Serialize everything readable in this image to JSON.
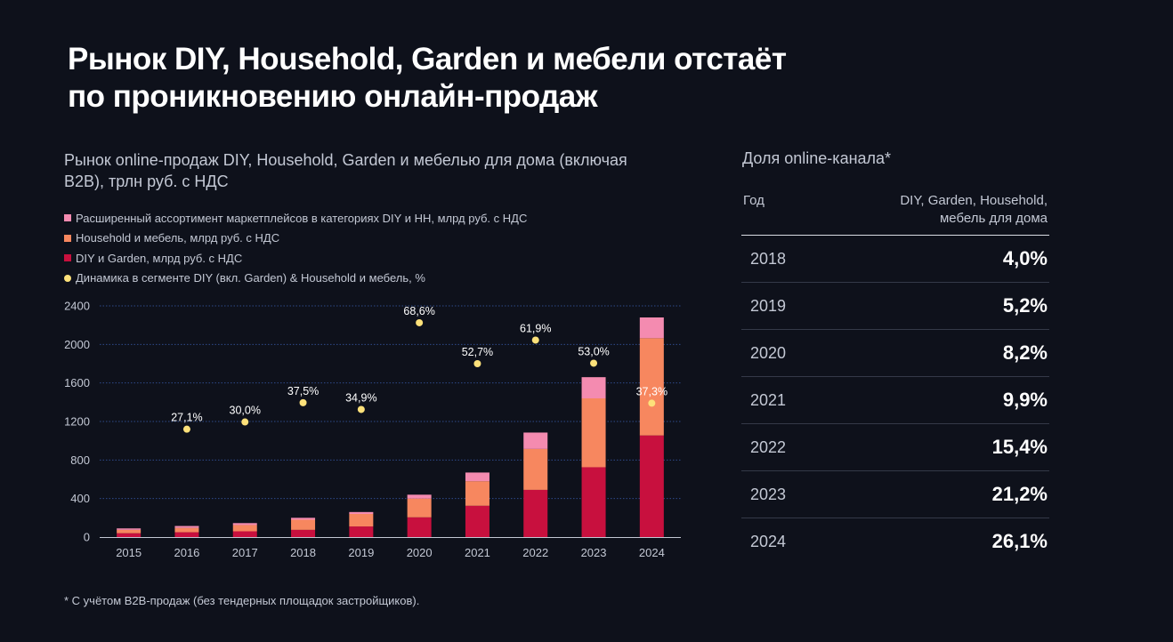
{
  "title": {
    "line1": "Рынок DIY, Household, Garden и мебели отстаёт",
    "line2": "по проникновению онлайн-продаж"
  },
  "chart_data": {
    "type": "bar",
    "stacked": true,
    "title": "Рынок online-продаж DIY, Household, Garden и мебелью для дома (включая B2B), трлн руб. с НДС",
    "categories": [
      "2015",
      "2016",
      "2017",
      "2018",
      "2019",
      "2020",
      "2021",
      "2022",
      "2023",
      "2024"
    ],
    "series": [
      {
        "name": "DIY и Garden, млрд руб. с НДС",
        "color": "#c8103e",
        "values": [
          40,
          50,
          60,
          75,
          110,
          205,
          325,
          490,
          725,
          1055
        ]
      },
      {
        "name": "Household  и мебель, млрд руб. с НДС",
        "color": "#f7875f",
        "values": [
          35,
          45,
          65,
          105,
          130,
          195,
          255,
          425,
          715,
          1010
        ]
      },
      {
        "name": "Расширенный ассортимент маркетплейсов в категориях DIY и HH, млрд руб. с НДС",
        "color": "#f48bb0",
        "values": [
          15,
          20,
          20,
          20,
          20,
          40,
          90,
          170,
          220,
          215
        ]
      }
    ],
    "growth_series": {
      "name": "Динамика в сегменте DIY (вкл. Garden) & Household  и мебель, %",
      "color": "#fde17a",
      "points": [
        {
          "year": "2016",
          "y": 1120,
          "label": "27,1%"
        },
        {
          "year": "2017",
          "y": 1195,
          "label": "30,0%"
        },
        {
          "year": "2018",
          "y": 1395,
          "label": "37,5%"
        },
        {
          "year": "2019",
          "y": 1325,
          "label": "34,9%"
        },
        {
          "year": "2020",
          "y": 2225,
          "label": "68,6%"
        },
        {
          "year": "2021",
          "y": 1800,
          "label": "52,7%"
        },
        {
          "year": "2022",
          "y": 2045,
          "label": "61,9%"
        },
        {
          "year": "2023",
          "y": 1805,
          "label": "53,0%"
        },
        {
          "year": "2024",
          "y": 1390,
          "label": "37,3%"
        }
      ]
    },
    "legend_order": [
      {
        "name": "Расширенный ассортимент маркетплейсов в категориях DIY и HH, млрд руб. с НДС",
        "color": "#f48bb0",
        "marker": "square"
      },
      {
        "name": "Household  и мебель, млрд руб. с НДС",
        "color": "#f7875f",
        "marker": "square"
      },
      {
        "name": "DIY и Garden, млрд руб. с НДС",
        "color": "#c8103e",
        "marker": "square"
      },
      {
        "name": "Динамика в сегменте DIY (вкл. Garden) & Household  и мебель, %",
        "color": "#fde17a",
        "marker": "dot"
      }
    ],
    "yticks": [
      0,
      400,
      800,
      1200,
      1600,
      2000,
      2400
    ],
    "ylim": [
      0,
      2400
    ],
    "grid": true
  },
  "share": {
    "title": "Доля online-канала*",
    "col_year": "Год",
    "col_segment_line1": "DIY, Garden, Household,",
    "col_segment_line2": "мебель для дома",
    "rows": [
      {
        "year": "2018",
        "value": "4,0%"
      },
      {
        "year": "2019",
        "value": "5,2%"
      },
      {
        "year": "2020",
        "value": "8,2%"
      },
      {
        "year": "2021",
        "value": "9,9%"
      },
      {
        "year": "2022",
        "value": "15,4%"
      },
      {
        "year": "2023",
        "value": "21,2%"
      },
      {
        "year": "2024",
        "value": "26,1%"
      }
    ]
  },
  "footnote": "* С учётом B2B-продаж (без тендерных площадок застройщиков).",
  "colors": {
    "background": "#0e111b",
    "text_secondary": "#c3c8d4",
    "grid": "#2f4a8a"
  }
}
